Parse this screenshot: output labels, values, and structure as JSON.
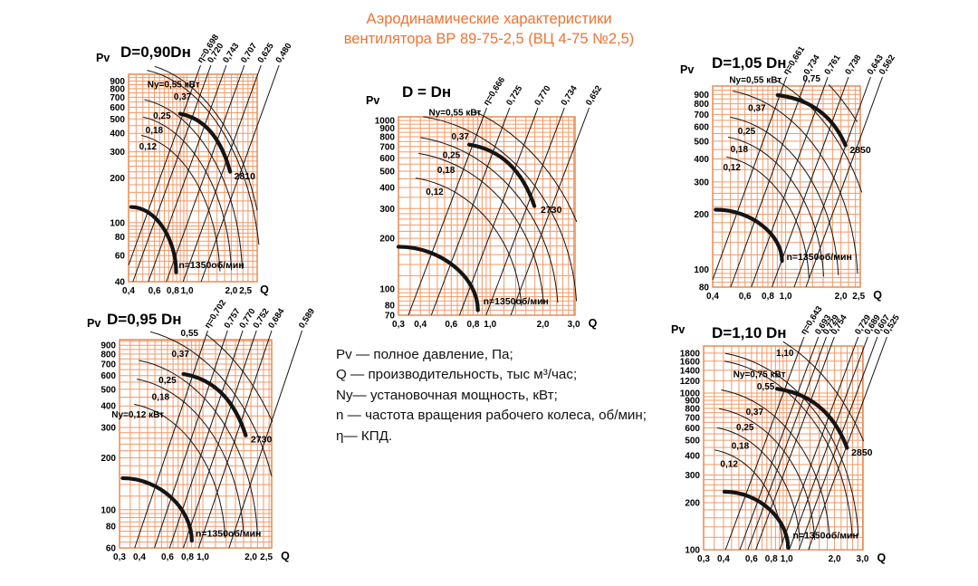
{
  "page_title": {
    "line1": "Аэродинамические характеристики",
    "line2": "вентилятора  ВР 89-75-2,5 (ВЦ 4-75 №2,5)"
  },
  "colors": {
    "accent": "#f07331",
    "grid": "#f19a68",
    "grid_border": "#ea8a50",
    "curve": "#141414"
  },
  "legend": {
    "lines": [
      "Pv — полное давление, Па;",
      "Q  — производительность, тыс м³/час;",
      "Ny— установочная мощность, кВт;",
      "n — частота вращения рабочего колеса, об/мин;",
      "η— КПД."
    ]
  },
  "chart_data": [
    {
      "id": "d090",
      "type": "line",
      "title": "D=0,90Dн",
      "ylabel": "Pv",
      "xlabel": "Q",
      "ylim": [
        40,
        1000
      ],
      "xlim": [
        0.4,
        3.0
      ],
      "grid": true,
      "y_ticks": [
        900,
        800,
        700,
        600,
        500,
        400,
        300,
        200,
        100,
        80,
        60,
        40
      ],
      "x_tick_values": [
        0.4,
        0.6,
        0.8,
        1.0,
        2.0,
        2.5
      ],
      "x_tick_labels": [
        "0,4",
        "0,6",
        "0,8",
        "1,0",
        "2,0",
        "2,5"
      ],
      "eta_values": [
        0.698,
        0.72,
        0.743,
        0.707,
        0.625,
        0.48
      ],
      "eta_labels": [
        "η=0,698",
        "0,720",
        "0,743",
        "0,707",
        "0,625",
        "0,480"
      ],
      "power_kw": [
        0.55,
        0.37,
        0.25,
        0.18,
        0.12
      ],
      "power_labels": [
        "Ny=0,55 кВт",
        "0,37",
        "0,25",
        "0,18",
        "0,12"
      ],
      "rpm_max": 2810,
      "rpm_max_label": "2810",
      "rpm_min": 1350,
      "rpm_min_label": "n=1350об/мин"
    },
    {
      "id": "ddn",
      "type": "line",
      "title": "D = Dн",
      "ylabel": "Pv",
      "xlabel": "Q",
      "ylim": [
        70,
        1050
      ],
      "xlim": [
        0.3,
        3.05
      ],
      "grid": true,
      "y_ticks": [
        1000,
        900,
        800,
        700,
        600,
        500,
        400,
        300,
        200,
        100,
        80,
        70
      ],
      "x_tick_values": [
        0.3,
        0.4,
        0.6,
        0.8,
        1.0,
        2.0,
        3.0
      ],
      "x_tick_labels": [
        "0,3",
        "0,4",
        "0,6",
        "0,8",
        "1,0",
        "2,0",
        "3,0"
      ],
      "eta_values": [
        0.666,
        0.725,
        0.77,
        0.734,
        0.652
      ],
      "eta_labels": [
        "η=0,666",
        "0,725",
        "0,770",
        "0,734",
        "0,652"
      ],
      "power_kw": [
        0.55,
        0.37,
        0.25,
        0.18,
        0.12
      ],
      "power_labels": [
        "Ny=0,55 кВт",
        "0,37",
        "0,25",
        "0,18",
        "0,12"
      ],
      "rpm_max": 2730,
      "rpm_max_label": "2730",
      "rpm_min": 1350,
      "rpm_min_label": "n=1350об/мин"
    },
    {
      "id": "d105",
      "type": "line",
      "title": "D=1,05 Dн",
      "ylabel": "Pv",
      "xlabel": "Q",
      "ylim": [
        80,
        1000
      ],
      "xlim": [
        0.4,
        2.55
      ],
      "grid": true,
      "y_ticks": [
        900,
        800,
        700,
        600,
        500,
        400,
        300,
        200,
        100,
        80
      ],
      "x_tick_values": [
        0.4,
        0.6,
        0.8,
        1.0,
        2.0,
        2.5
      ],
      "x_tick_labels": [
        "0,4",
        "0,6",
        "0,8",
        "1,0",
        "2,0",
        "2,5"
      ],
      "eta_values": [
        0.661,
        0.734,
        0.761,
        0.738,
        0.643,
        0.562
      ],
      "eta_labels": [
        "η=0,661",
        "0,734",
        "0,761",
        "0,738",
        "0,643",
        "0,562"
      ],
      "power_kw": [
        0.55,
        0.75,
        0.37,
        0.25,
        0.18,
        0.12
      ],
      "power_labels": [
        "Ny=0,55 кВт",
        "0,75",
        "0,37",
        "0,25",
        "0,18",
        "0,12"
      ],
      "rpm_max": 2850,
      "rpm_max_label": "2850",
      "rpm_min": 1350,
      "rpm_min_label": "n=1350об/мин"
    },
    {
      "id": "d095",
      "type": "line",
      "title": "D=0,95 Dн",
      "ylabel": "Pv",
      "xlabel": "Q",
      "ylim": [
        60,
        970
      ],
      "xlim": [
        0.3,
        2.7
      ],
      "grid": true,
      "y_ticks": [
        900,
        800,
        700,
        600,
        500,
        400,
        300,
        200,
        100,
        80,
        60
      ],
      "x_tick_values": [
        0.3,
        0.4,
        0.6,
        0.8,
        1.0,
        2.0,
        2.5
      ],
      "x_tick_labels": [
        "0,3",
        "0,4",
        "0,6",
        "0,8",
        "1,0",
        "2,0",
        "2,5"
      ],
      "eta_values": [
        0.702,
        0.757,
        0.77,
        0.752,
        0.684,
        0.589
      ],
      "eta_labels": [
        "η=0,702",
        "0,757",
        "0,770",
        "0,752",
        "0,684",
        "0,589"
      ],
      "power_kw": [
        0.55,
        0.37,
        0.25,
        0.18,
        0.12
      ],
      "power_labels": [
        "0,55",
        "0,37",
        "0,25",
        "0,18",
        "Ny=0,12 кВт"
      ],
      "rpm_max": 2730,
      "rpm_max_label": "2730",
      "rpm_min": 1350,
      "rpm_min_label": "n=1350об/мин"
    },
    {
      "id": "d110",
      "type": "line",
      "title": "D=1,10 Dн",
      "ylabel": "Pv",
      "xlabel": "Q",
      "ylim": [
        100,
        2000
      ],
      "xlim": [
        0.3,
        3.02
      ],
      "grid": true,
      "y_ticks": [
        1800,
        1600,
        1400,
        1200,
        1000,
        900,
        800,
        700,
        600,
        500,
        400,
        300,
        200,
        100
      ],
      "x_tick_values": [
        0.3,
        0.4,
        0.6,
        0.8,
        1.0,
        2.0,
        3.0
      ],
      "x_tick_labels": [
        "0,3",
        "0,4",
        "0,6",
        "0,8",
        "1,0",
        "2,0",
        "3,0"
      ],
      "eta_values": [
        0.643,
        0.693,
        0.729,
        0.754,
        0.729,
        0.689,
        0.607,
        0.525
      ],
      "eta_labels": [
        "η=0,643",
        "0,693",
        "0,729",
        "0,754",
        "0,729",
        "0,689",
        "0,607",
        "0,525"
      ],
      "power_kw": [
        1.1,
        0.75,
        0.55,
        0.37,
        0.25,
        0.18,
        0.12
      ],
      "power_labels": [
        "1,10",
        "Ny=0,75 кВт",
        "0,55",
        "0,37",
        "0,25",
        "0,18",
        "0,12"
      ],
      "rpm_max": 2850,
      "rpm_max_label": "2850",
      "rpm_min": 1350,
      "rpm_min_label": "n=1350об/мин"
    }
  ]
}
